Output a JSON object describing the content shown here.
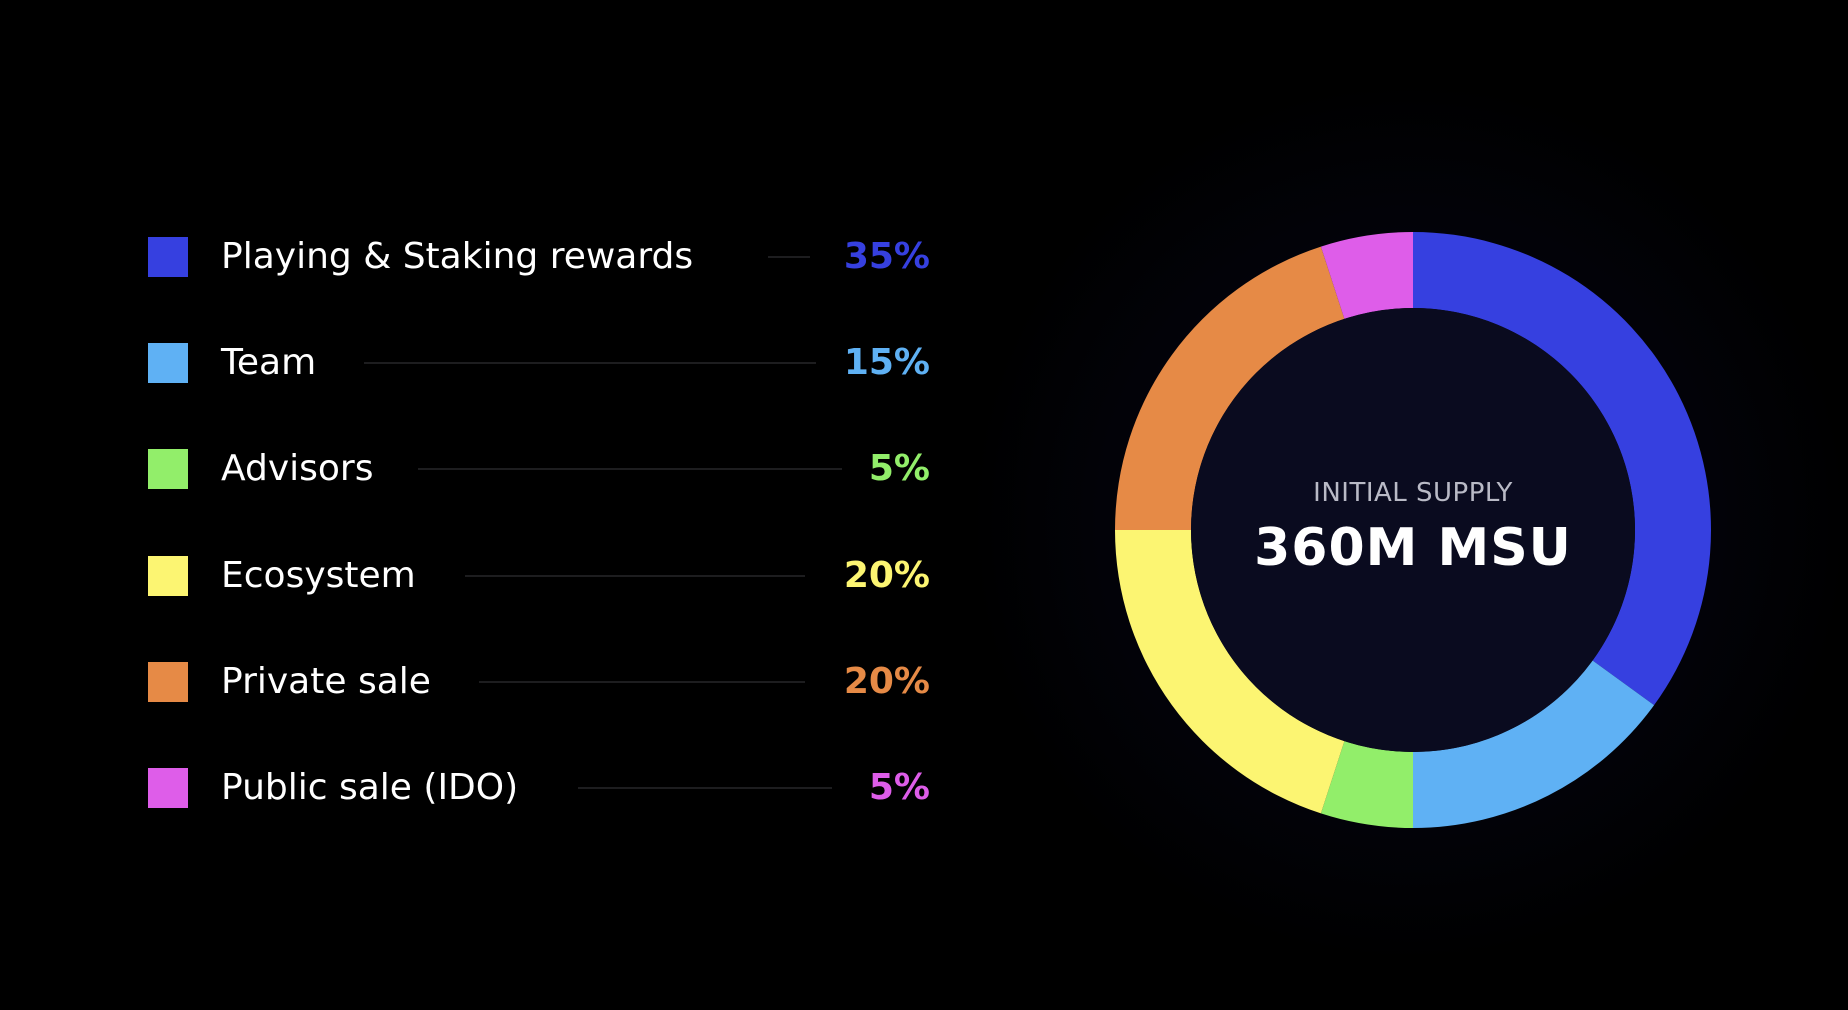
{
  "chart_data": {
    "type": "pie",
    "center_caption": "INITIAL SUPPLY",
    "center_value": "360M MSU",
    "slices": [
      {
        "label": "Playing & Staking rewards",
        "value": 35,
        "display": "35%",
        "color": "#3640e0"
      },
      {
        "label": "Team",
        "value": 15,
        "display": "15%",
        "color": "#5fb1f4"
      },
      {
        "label": "Advisors",
        "value": 5,
        "display": "5%",
        "color": "#92ee6a"
      },
      {
        "label": "Ecosystem",
        "value": 20,
        "display": "20%",
        "color": "#fcf572"
      },
      {
        "label": "Private sale",
        "value": 20,
        "display": "20%",
        "color": "#e68a46"
      },
      {
        "label": "Public sale (IDO)",
        "value": 5,
        "display": "5%",
        "color": "#de5de9"
      }
    ]
  }
}
